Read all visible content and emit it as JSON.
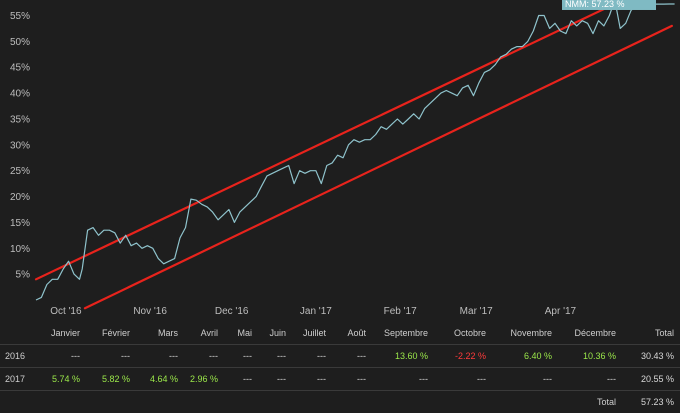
{
  "colors": {
    "background": "#1e1e1e",
    "line": "#8fc3cc",
    "channel": "#e8231c",
    "flag": "#7fbac3",
    "positive": "#9be84a",
    "negative": "#ff3b3b"
  },
  "chart_data": {
    "type": "line",
    "y_unit": "%",
    "ylim": [
      0,
      58
    ],
    "y_ticks": [
      "5%",
      "10%",
      "15%",
      "20%",
      "25%",
      "30%",
      "35%",
      "40%",
      "45%",
      "50%",
      "55%"
    ],
    "x_ticks": [
      "Oct '16",
      "Nov '16",
      "Dec '16",
      "Jan '17",
      "Feb '17",
      "Mar '17",
      "Apr '17"
    ],
    "xlim": [
      "2016-09-20",
      "2017-05-15"
    ],
    "grid": false,
    "last_value_label": "NMM: 57.23 %",
    "series": [
      {
        "x": [
          "2016-09-20",
          "2016-09-22",
          "2016-09-24",
          "2016-09-26",
          "2016-09-28",
          "2016-09-30",
          "2016-10-02",
          "2016-10-04",
          "2016-10-06",
          "2016-10-07",
          "2016-10-09",
          "2016-10-11",
          "2016-10-13",
          "2016-10-15",
          "2016-10-17",
          "2016-10-19",
          "2016-10-21",
          "2016-10-23",
          "2016-10-25",
          "2016-10-27",
          "2016-10-29",
          "2016-10-31",
          "2016-11-02",
          "2016-11-04",
          "2016-11-06",
          "2016-11-08",
          "2016-11-10",
          "2016-11-12",
          "2016-11-14",
          "2016-11-16",
          "2016-11-18",
          "2016-11-20",
          "2016-11-22",
          "2016-11-24",
          "2016-11-26",
          "2016-11-28",
          "2016-11-30",
          "2016-12-02",
          "2016-12-04",
          "2016-12-06",
          "2016-12-08",
          "2016-12-10",
          "2016-12-12",
          "2016-12-14",
          "2016-12-16",
          "2016-12-18",
          "2016-12-20",
          "2016-12-22",
          "2016-12-24",
          "2016-12-26",
          "2016-12-28",
          "2016-12-30",
          "2017-01-01",
          "2017-01-03",
          "2017-01-05",
          "2017-01-07",
          "2017-01-09",
          "2017-01-11",
          "2017-01-13",
          "2017-01-15",
          "2017-01-17",
          "2017-01-19",
          "2017-01-21",
          "2017-01-23",
          "2017-01-25",
          "2017-01-27",
          "2017-01-29",
          "2017-01-31",
          "2017-02-02",
          "2017-02-04",
          "2017-02-06",
          "2017-02-08",
          "2017-02-10",
          "2017-02-12",
          "2017-02-14",
          "2017-02-16",
          "2017-02-18",
          "2017-02-20",
          "2017-02-22",
          "2017-02-24",
          "2017-02-26",
          "2017-02-28",
          "2017-03-02",
          "2017-03-04",
          "2017-03-06",
          "2017-03-08",
          "2017-03-10",
          "2017-03-12",
          "2017-03-14",
          "2017-03-16",
          "2017-03-18",
          "2017-03-20",
          "2017-03-22",
          "2017-03-24",
          "2017-03-26",
          "2017-03-28",
          "2017-03-30",
          "2017-04-01",
          "2017-04-03",
          "2017-04-05",
          "2017-04-07",
          "2017-04-09",
          "2017-04-11",
          "2017-04-13",
          "2017-04-15",
          "2017-04-17",
          "2017-04-19",
          "2017-04-21",
          "2017-04-23",
          "2017-04-25",
          "2017-04-27",
          "2017-04-29",
          "2017-05-01",
          "2017-05-03",
          "2017-05-05",
          "2017-05-07",
          "2017-05-09",
          "2017-05-11",
          "2017-05-13"
        ],
        "values": [
          0,
          0.5,
          3,
          4,
          4,
          6,
          7.5,
          5,
          4,
          6,
          13.5,
          14,
          12.5,
          13.5,
          13.5,
          13,
          11,
          12.5,
          10.5,
          11,
          10,
          10.5,
          10,
          8,
          7,
          7.5,
          8,
          12,
          14,
          19.5,
          19.3,
          18.5,
          18,
          17,
          15.5,
          16.5,
          17.5,
          15,
          17,
          18,
          19,
          20,
          22,
          24,
          24.5,
          25,
          25.5,
          26,
          22.5,
          25,
          24.5,
          25,
          25,
          22.5,
          26,
          26.5,
          28,
          27.5,
          30,
          31,
          30.5,
          31,
          31,
          32,
          33.5,
          33,
          34,
          35,
          34,
          35,
          36,
          35,
          37,
          38,
          39,
          40,
          40.5,
          40,
          39.5,
          41,
          41.5,
          39.5,
          42,
          44,
          44.5,
          45.5,
          47,
          47.5,
          48.5,
          49,
          49,
          50,
          52,
          55,
          55,
          52.5,
          53.5,
          52,
          51.5,
          54,
          53,
          54,
          53.5,
          51.5,
          54,
          53,
          55,
          58,
          52.5,
          53.5,
          56,
          57,
          57.2,
          57.2,
          57.2,
          57.2,
          57.2,
          57.23,
          57.23
        ]
      }
    ],
    "channel_lines": [
      {
        "x": [
          "2016-09-20",
          "2017-04-24"
        ],
        "values": [
          4,
          58
        ]
      },
      {
        "x": [
          "2016-10-08",
          "2017-05-12"
        ],
        "values": [
          -1.6,
          53
        ]
      }
    ]
  },
  "table": {
    "headers": [
      "",
      "Janvier",
      "Février",
      "Mars",
      "Avril",
      "Mai",
      "Juin",
      "Juillet",
      "Août",
      "Septembre",
      "Octobre",
      "Novembre",
      "Décembre",
      "Total"
    ],
    "rows": [
      {
        "year": "2016",
        "cells": [
          {
            "text": "---",
            "kind": "empty"
          },
          {
            "text": "---",
            "kind": "empty"
          },
          {
            "text": "---",
            "kind": "empty"
          },
          {
            "text": "---",
            "kind": "empty"
          },
          {
            "text": "---",
            "kind": "empty"
          },
          {
            "text": "---",
            "kind": "empty"
          },
          {
            "text": "---",
            "kind": "empty"
          },
          {
            "text": "---",
            "kind": "empty"
          },
          {
            "text": "13.60 %",
            "kind": "pos"
          },
          {
            "text": "-2.22 %",
            "kind": "neg"
          },
          {
            "text": "6.40 %",
            "kind": "pos"
          },
          {
            "text": "10.36 %",
            "kind": "pos"
          }
        ],
        "total": "30.43 %"
      },
      {
        "year": "2017",
        "cells": [
          {
            "text": "5.74 %",
            "kind": "pos"
          },
          {
            "text": "5.82 %",
            "kind": "pos"
          },
          {
            "text": "4.64 %",
            "kind": "pos"
          },
          {
            "text": "2.96 %",
            "kind": "pos"
          },
          {
            "text": "---",
            "kind": "empty"
          },
          {
            "text": "---",
            "kind": "empty"
          },
          {
            "text": "---",
            "kind": "empty"
          },
          {
            "text": "---",
            "kind": "empty"
          },
          {
            "text": "---",
            "kind": "empty"
          },
          {
            "text": "---",
            "kind": "empty"
          },
          {
            "text": "---",
            "kind": "empty"
          },
          {
            "text": "---",
            "kind": "empty"
          }
        ],
        "total": "20.55 %"
      }
    ],
    "total_label": "Total",
    "grand_total": "57.23 %"
  }
}
